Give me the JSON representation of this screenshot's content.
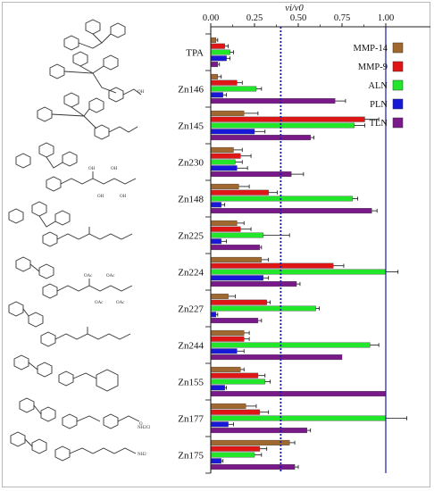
{
  "chart_data": {
    "type": "bar",
    "orientation": "horizontal",
    "title": "",
    "xlabel": "vi/v0",
    "ylabel": "",
    "xlim": [
      0.0,
      1.0
    ],
    "xticks": [
      "0.00",
      "0.25",
      "0.50",
      "0.75",
      "1.00"
    ],
    "grid": false,
    "legend_position": "top-right",
    "reference_lines": [
      {
        "x": 0.4,
        "style": "dotted",
        "color": "#1a1aa8"
      },
      {
        "x": 1.0,
        "style": "solid",
        "color": "#1a1aa8"
      }
    ],
    "categories": [
      "TPA",
      "Zn146",
      "Zn145",
      "Zn230",
      "Zn148",
      "Zn225",
      "Zn224",
      "Zn227",
      "Zn244",
      "Zn155",
      "Zn177",
      "Zn175"
    ],
    "series": [
      {
        "name": "MMP-14",
        "color": "#a0672e",
        "values": [
          0.03,
          0.04,
          0.19,
          0.13,
          0.16,
          0.15,
          0.29,
          0.1,
          0.19,
          0.17,
          0.2,
          0.45
        ],
        "errors": [
          0.01,
          0.02,
          0.08,
          0.05,
          0.06,
          0.04,
          0.04,
          0.04,
          0.03,
          0.02,
          0.06,
          0.03
        ]
      },
      {
        "name": "MMP-9",
        "color": "#e01616",
        "values": [
          0.08,
          0.15,
          0.88,
          0.17,
          0.33,
          0.17,
          0.7,
          0.32,
          0.19,
          0.27,
          0.28,
          0.28
        ],
        "errors": [
          0.02,
          0.03,
          0.08,
          0.06,
          0.05,
          0.06,
          0.06,
          0.02,
          0.03,
          0.04,
          0.05,
          0.04
        ]
      },
      {
        "name": "ALN",
        "color": "#22e62a",
        "values": [
          0.11,
          0.26,
          0.82,
          0.14,
          0.81,
          0.3,
          1.0,
          0.6,
          0.91,
          0.31,
          1.0,
          0.25
        ],
        "errors": [
          0.02,
          0.03,
          0.06,
          0.04,
          0.03,
          0.15,
          0.07,
          0.02,
          0.05,
          0.03,
          0.12,
          0.04
        ]
      },
      {
        "name": "PLN",
        "color": "#1818d8",
        "values": [
          0.09,
          0.07,
          0.25,
          0.15,
          0.06,
          0.06,
          0.3,
          0.03,
          0.15,
          0.08,
          0.1,
          0.06
        ],
        "errors": [
          0.02,
          0.02,
          0.06,
          0.06,
          0.02,
          0.03,
          0.03,
          0.01,
          0.04,
          0.01,
          0.03,
          0.01
        ]
      },
      {
        "name": "TLN",
        "color": "#7a1a8a",
        "values": [
          0.04,
          0.71,
          0.57,
          0.46,
          0.92,
          0.28,
          0.49,
          0.27,
          0.75,
          1.0,
          0.55,
          0.48
        ],
        "errors": [
          0.01,
          0.06,
          0.02,
          0.07,
          0.03,
          0.01,
          0.02,
          0.02,
          0.0,
          0.0,
          0.02,
          0.02
        ]
      }
    ]
  },
  "structures": {
    "labels": [
      "OH",
      "OH",
      "OH",
      "OH",
      "OH",
      "OAc",
      "OAc",
      "OAc",
      "OAc",
      "NH2",
      "NH2Cl",
      "O"
    ]
  }
}
